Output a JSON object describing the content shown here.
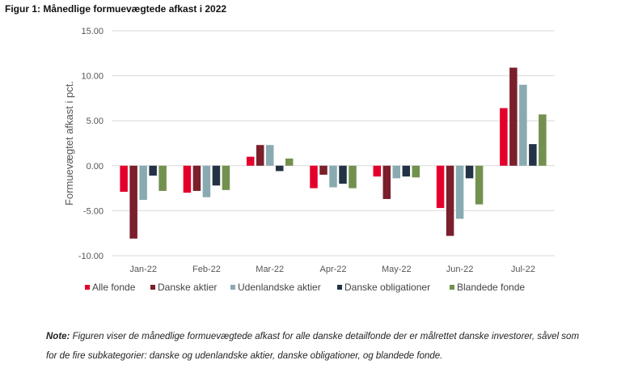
{
  "figure_title": "Figur 1: Månedlige formuevægtede afkast i 2022",
  "note": {
    "label": "Note:",
    "text": " Figuren viser de månedlige formuevægtede afkast for alle danske detailfonde der er målrettet danske investorer, såvel som for de fire subkategorier: danske og udenlandske aktier, danske obligationer, og blandede fonde."
  },
  "chart_data": {
    "type": "bar",
    "title": "Figur 1: Månedlige formuevægtede afkast i 2022",
    "ylabel": "Formuevægtet afkast i pct.",
    "xlabel": "",
    "ylim": [
      -10,
      15
    ],
    "yticks": [
      "15.00",
      "10.00",
      "5.00",
      "0.00",
      "-5.00",
      "-10.00"
    ],
    "grid": true,
    "legend_position": "bottom",
    "categories": [
      "Jan-22",
      "Feb-22",
      "Mar-22",
      "Apr-22",
      "May-22",
      "Jun-22",
      "Jul-22"
    ],
    "series": [
      {
        "name": "Alle fonde",
        "color": "#e4002b",
        "values": [
          -2.9,
          -3.0,
          1.0,
          -2.5,
          -1.2,
          -4.7,
          6.4
        ]
      },
      {
        "name": "Danske aktier",
        "color": "#7a1f2b",
        "values": [
          -8.1,
          -2.8,
          2.3,
          -1.0,
          -3.7,
          -7.8,
          10.9
        ]
      },
      {
        "name": "Udenlandske aktier",
        "color": "#8aaab1",
        "values": [
          -3.8,
          -3.5,
          2.3,
          -2.4,
          -1.4,
          -5.9,
          9.0
        ]
      },
      {
        "name": "Danske obligationer",
        "color": "#233245",
        "values": [
          -1.1,
          -2.2,
          -0.6,
          -2.0,
          -1.2,
          -1.4,
          2.4
        ]
      },
      {
        "name": "Blandede fonde",
        "color": "#72914e",
        "values": [
          -2.8,
          -2.7,
          0.8,
          -2.5,
          -1.3,
          -4.3,
          5.7
        ]
      }
    ]
  }
}
